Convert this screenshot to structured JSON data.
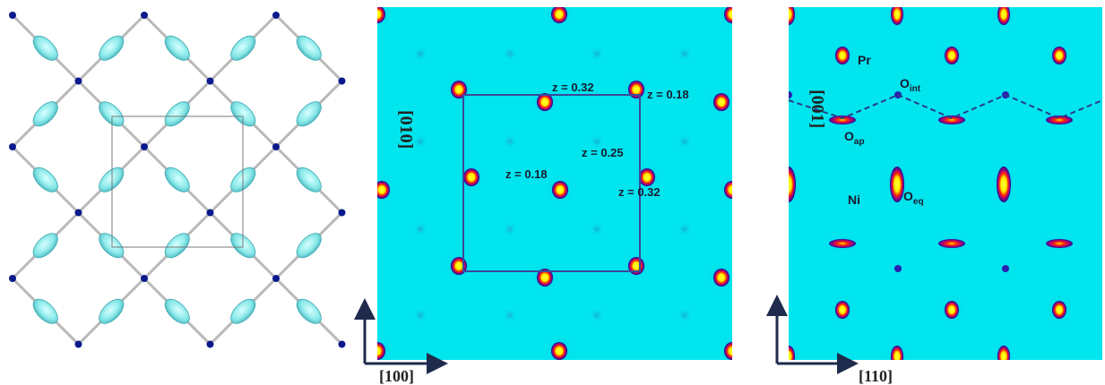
{
  "panel_b": {
    "labels": {
      "z1": "z = 0.32",
      "z2": "z = 0.18",
      "z3": "z = 0.25",
      "z4": "z = 0.18",
      "z5": "z = 0.32"
    },
    "vertical_axis": "[010]",
    "horizontal_axis": "[100]"
  },
  "panel_c": {
    "labels": {
      "pr": "Pr",
      "oint_main": "O",
      "oint_sub": "int",
      "oap_main": "O",
      "oap_sub": "ap",
      "ni": "Ni",
      "oeq_main": "O",
      "oeq_sub": "eq"
    },
    "vertical_axis": "[001]",
    "horizontal_axis": "[110]"
  },
  "colors": {
    "map_background": "#00e5ee",
    "atom_blue": "#0a1a8c",
    "bond_gray": "#b9b9b9",
    "ellipsoid_cyan": "#7fe6e6",
    "cell_line": "#3a4a9a",
    "arrow": "#1f2b4d"
  }
}
